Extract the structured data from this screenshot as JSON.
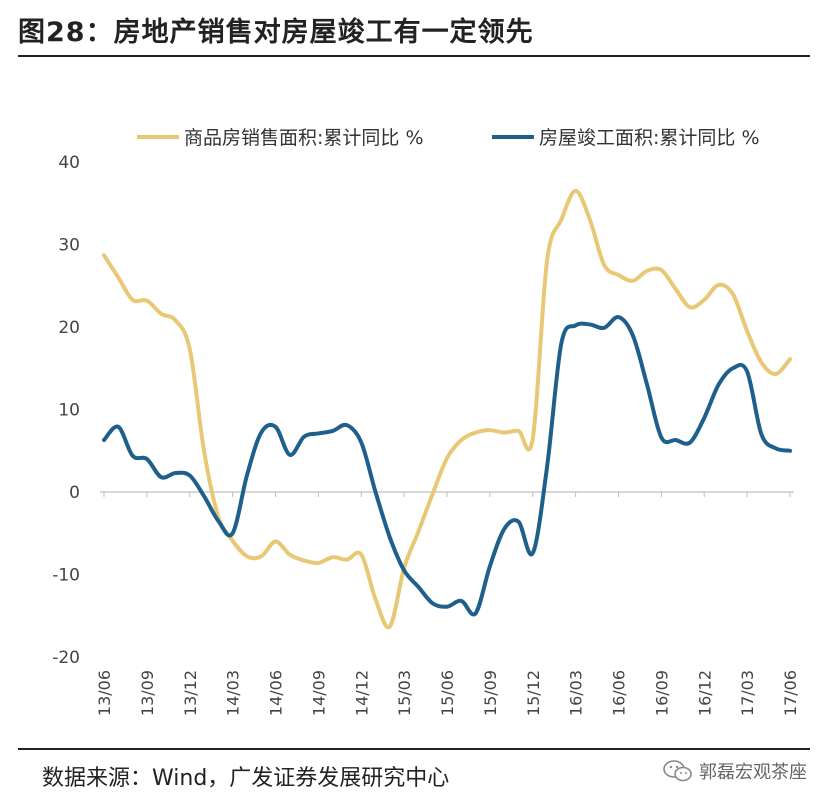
{
  "header": {
    "title": "图28：房地产销售对房屋竣工有一定领先"
  },
  "footer": {
    "source": "数据来源：Wind，广发证券发展研究中心",
    "watermark": "郭磊宏观茶座",
    "watermark_icon": "wechat-icon"
  },
  "chart_data": {
    "type": "line",
    "title": "",
    "xlabel": "",
    "ylabel": "",
    "ylim": [
      -20,
      40
    ],
    "yticks": [
      -20,
      -10,
      0,
      10,
      20,
      30,
      40
    ],
    "ytick_labels": [
      "-20",
      "-10",
      "0",
      "10",
      "20",
      "30",
      "40"
    ],
    "xticks": [
      "13/06",
      "13/09",
      "13/12",
      "14/03",
      "14/06",
      "14/09",
      "14/12",
      "15/03",
      "15/06",
      "15/09",
      "15/12",
      "16/03",
      "16/06",
      "16/09",
      "16/12",
      "17/03",
      "17/06"
    ],
    "legend_position": "top",
    "x_months": [
      "13/06",
      "13/07",
      "13/08",
      "13/09",
      "13/10",
      "13/11",
      "13/12",
      "14/01",
      "14/02",
      "14/03",
      "14/04",
      "14/05",
      "14/06",
      "14/07",
      "14/08",
      "14/09",
      "14/10",
      "14/11",
      "14/12",
      "15/01",
      "15/02",
      "15/03",
      "15/04",
      "15/05",
      "15/06",
      "15/07",
      "15/08",
      "15/09",
      "15/10",
      "15/11",
      "15/12",
      "16/01",
      "16/02",
      "16/03",
      "16/04",
      "16/05",
      "16/06",
      "16/07",
      "16/08",
      "16/09",
      "16/10",
      "16/11",
      "16/12",
      "17/01",
      "17/02",
      "17/03",
      "17/04",
      "17/05",
      "17/06"
    ],
    "series": [
      {
        "name": "商品房销售面积:累计同比 %",
        "color": "#E8C874",
        "values": [
          28.7,
          26.0,
          23.3,
          23.2,
          21.6,
          20.8,
          17.3,
          5.0,
          -3.0,
          -5.9,
          -7.8,
          -7.8,
          -6.0,
          -7.6,
          -8.3,
          -8.6,
          -7.9,
          -8.2,
          -7.6,
          -13.0,
          -16.3,
          -9.2,
          -4.8,
          -0.2,
          4.1,
          6.3,
          7.2,
          7.5,
          7.2,
          7.4,
          6.5,
          28.0,
          33.0,
          36.5,
          33.0,
          27.5,
          26.3,
          25.6,
          26.8,
          26.9,
          24.6,
          22.4,
          23.3,
          25.1,
          24.0,
          19.5,
          15.7,
          14.3,
          16.1
        ]
      },
      {
        "name": "房屋竣工面积:累计同比 %",
        "color": "#1F5F8B",
        "values": [
          6.3,
          7.9,
          4.4,
          4.0,
          1.8,
          2.3,
          2.0,
          -0.5,
          -3.5,
          -5.0,
          2.0,
          7.2,
          7.9,
          4.5,
          6.7,
          7.1,
          7.4,
          8.1,
          6.0,
          0.0,
          -5.5,
          -9.5,
          -11.5,
          -13.5,
          -13.9,
          -13.2,
          -14.7,
          -9.0,
          -4.5,
          -3.6,
          -7.4,
          3.0,
          18.0,
          20.2,
          20.3,
          19.9,
          21.2,
          19.0,
          13.0,
          6.6,
          6.3,
          6.0,
          9.0,
          13.0,
          15.0,
          14.6,
          7.0,
          5.3,
          5.0
        ]
      }
    ]
  }
}
